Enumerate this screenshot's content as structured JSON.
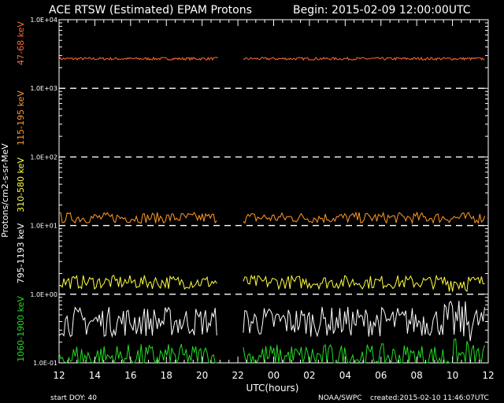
{
  "header": {
    "title": "ACE RTSW (Estimated) EPAM Protons",
    "begin": "Begin: 2015-02-09 12:00:00UTC"
  },
  "footer": {
    "start_doy": "start DOY:  40",
    "org": "NOAA/SWPC",
    "created": "created:2015-02-10 11:46:07UTC"
  },
  "colors": {
    "ch1": "#ff6a3a",
    "ch2": "#ff9a2a",
    "ch3": "#ffff40",
    "ch4": "#ffffff",
    "ch5": "#22dd22"
  },
  "chart_data": {
    "type": "line",
    "title": "ACE RTSW (Estimated) EPAM Protons",
    "xlabel": "UTC(hours)",
    "ylabel": "Protons/cm2-s-sr-MeV",
    "yscale": "log",
    "ylim": [
      0.1,
      10000
    ],
    "ytick_labels": [
      "1.0E-01",
      "1.0E+00",
      "1.0E+01",
      "1.0E+02",
      "1.0E+03",
      "1.0E+04"
    ],
    "xlim": [
      12,
      36
    ],
    "xtick_labels": [
      "12",
      "14",
      "16",
      "18",
      "20",
      "22",
      "00",
      "02",
      "04",
      "06",
      "08",
      "10",
      "12"
    ],
    "grid": "dashed horizontal lines at each decade",
    "data_gap_hours": [
      20.9,
      22.3
    ],
    "series": [
      {
        "name": "47-68 keV",
        "color": "ch1",
        "approx_level": 2700,
        "spread_decades": 0.02
      },
      {
        "name": "115-195 keV",
        "color": "ch2",
        "approx_level": 13,
        "spread_decades": 0.08
      },
      {
        "name": "310-580 keV",
        "color": "ch3",
        "approx_level": 1.5,
        "spread_decades": 0.1
      },
      {
        "name": "795-1193 keV",
        "color": "ch4",
        "approx_level": 0.4,
        "spread_decades": 0.22
      },
      {
        "name": "1060-1900 keV",
        "color": "ch5",
        "approx_level": 0.12,
        "spread_decades": 0.2
      }
    ]
  }
}
